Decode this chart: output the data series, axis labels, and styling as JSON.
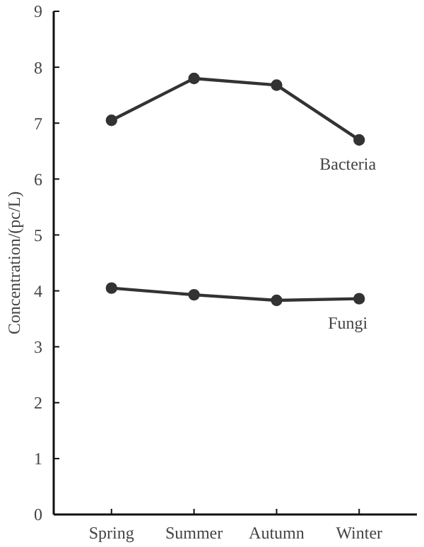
{
  "chart_data": {
    "type": "line",
    "ylabel": "Concentration/(pc/L)",
    "categories": [
      "Spring",
      "Summer",
      "Autumn",
      "Winter"
    ],
    "series": [
      {
        "name": "Bacteria",
        "color": "#333333",
        "values": [
          7.05,
          7.8,
          7.68,
          6.7
        ]
      },
      {
        "name": "Fungi",
        "color": "#333333",
        "values": [
          4.05,
          3.93,
          3.83,
          3.86
        ]
      }
    ],
    "ylim": [
      0,
      9
    ],
    "yticks": [
      0,
      1,
      2,
      3,
      4,
      5,
      6,
      7,
      8,
      9
    ],
    "grid": false,
    "legend": false,
    "marker": "circle",
    "line_style": "solid"
  }
}
